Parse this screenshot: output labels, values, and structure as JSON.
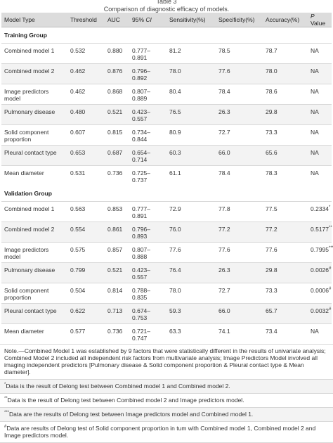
{
  "caption": {
    "table_no": "Table 3",
    "title": "Comparison of diagnostic efficacy of models."
  },
  "columns": [
    "Model Type",
    "Threshold",
    "AUC",
    "95% CI",
    "Sensitivity(%)",
    "Specificity(%)",
    "Accuracy(%)",
    "P Value"
  ],
  "training": {
    "label": "Training Group",
    "rows": [
      {
        "model": "Combined model 1",
        "threshold": "0.532",
        "auc": "0.880",
        "ci": "0.777–0.891",
        "sens": "81.2",
        "spec": "78.5",
        "acc": "78.7",
        "p": "NA",
        "p_mark": ""
      },
      {
        "model": "Combined model 2",
        "threshold": "0.462",
        "auc": "0.876",
        "ci": "0.796–0.892",
        "sens": "78.0",
        "spec": "77.6",
        "acc": "78.0",
        "p": "NA",
        "p_mark": ""
      },
      {
        "model": "Image predictors model",
        "threshold": "0.462",
        "auc": "0.868",
        "ci": "0.807–0.889",
        "sens": "80.4",
        "spec": "78.4",
        "acc": "78.6",
        "p": "NA",
        "p_mark": ""
      },
      {
        "model": "Pulmonary disease",
        "threshold": "0.480",
        "auc": "0.521",
        "ci": "0.423–0.557",
        "sens": "76.5",
        "spec": "26.3",
        "acc": "29.8",
        "p": "NA",
        "p_mark": ""
      },
      {
        "model": "Solid component proportion",
        "threshold": "0.607",
        "auc": "0.815",
        "ci": "0.734–0.844",
        "sens": "80.9",
        "spec": "72.7",
        "acc": "73.3",
        "p": "NA",
        "p_mark": ""
      },
      {
        "model": "Pleural contact type",
        "threshold": "0.653",
        "auc": "0.687",
        "ci": "0.654–0.714",
        "sens": "60.3",
        "spec": "66.0",
        "acc": "65.6",
        "p": "NA",
        "p_mark": ""
      },
      {
        "model": "Mean diameter",
        "threshold": "0.531",
        "auc": "0.736",
        "ci": "0.725–0.737",
        "sens": "61.1",
        "spec": "78.4",
        "acc": "78.3",
        "p": "NA",
        "p_mark": ""
      }
    ]
  },
  "validation": {
    "label": "Validation Group",
    "rows": [
      {
        "model": "Combined model 1",
        "threshold": "0.563",
        "auc": "0.853",
        "ci": "0.777–0.891",
        "sens": "72.9",
        "spec": "77.8",
        "acc": "77.5",
        "p": "0.2334",
        "p_mark": "*"
      },
      {
        "model": "Combined model 2",
        "threshold": "0.554",
        "auc": "0.861",
        "ci": "0.796–0.893",
        "sens": "76.0",
        "spec": "77.2",
        "acc": "77.2",
        "p": "0.5177",
        "p_mark": "**"
      },
      {
        "model": "Image predictors model",
        "threshold": "0.575",
        "auc": "0.857",
        "ci": "0.807–0.888",
        "sens": "77.6",
        "spec": "77.6",
        "acc": "77.6",
        "p": "0.7995",
        "p_mark": "***"
      },
      {
        "model": "Pulmonary disease",
        "threshold": "0.799",
        "auc": "0.521",
        "ci": "0.423–0.557",
        "sens": "76.4",
        "spec": "26.3",
        "acc": "29.8",
        "p": "0.0026",
        "p_mark": "#"
      },
      {
        "model": "Solid component proportion",
        "threshold": "0.504",
        "auc": "0.814",
        "ci": "0.788–0.835",
        "sens": "78.0",
        "spec": "72.7",
        "acc": "73.3",
        "p": "0.0006",
        "p_mark": "#"
      },
      {
        "model": "Pleural contact type",
        "threshold": "0.622",
        "auc": "0.713",
        "ci": "0.674–0.753",
        "sens": "59.3",
        "spec": "66.0",
        "acc": "65.7",
        "p": "0.0032",
        "p_mark": "#"
      },
      {
        "model": "Mean diameter",
        "threshold": "0.577",
        "auc": "0.736",
        "ci": "0.721–0.747",
        "sens": "63.3",
        "spec": "74.1",
        "acc": "73.4",
        "p": "NA",
        "p_mark": ""
      }
    ]
  },
  "notes": [
    {
      "mark": "",
      "text": "Note.—Combined Model 1 was established by 9 factors that were statistically different in the results of univariate analysis; Combined Model 2 included all independent risk factors from multivariate analysis; Image Predictors Model involved all imaging independent predictors [Pulmonary disease & Solid component proportion & Pleural contact type & Mean diameter]."
    },
    {
      "mark": "*",
      "text": "Data is the result of Delong test between Combined model 1 and Combined model 2."
    },
    {
      "mark": "**",
      "text": "Data is the result of Delong test between Combined model 2 and Image predictors model."
    },
    {
      "mark": "***",
      "text": "Data are the results of Delong test between Image predictors model and Combined model 1."
    },
    {
      "mark": "#",
      "text": "Data are results of Delong test of Solid component proportion in tum with Combined model 1, Combined model 2 and Image predictors model."
    }
  ]
}
